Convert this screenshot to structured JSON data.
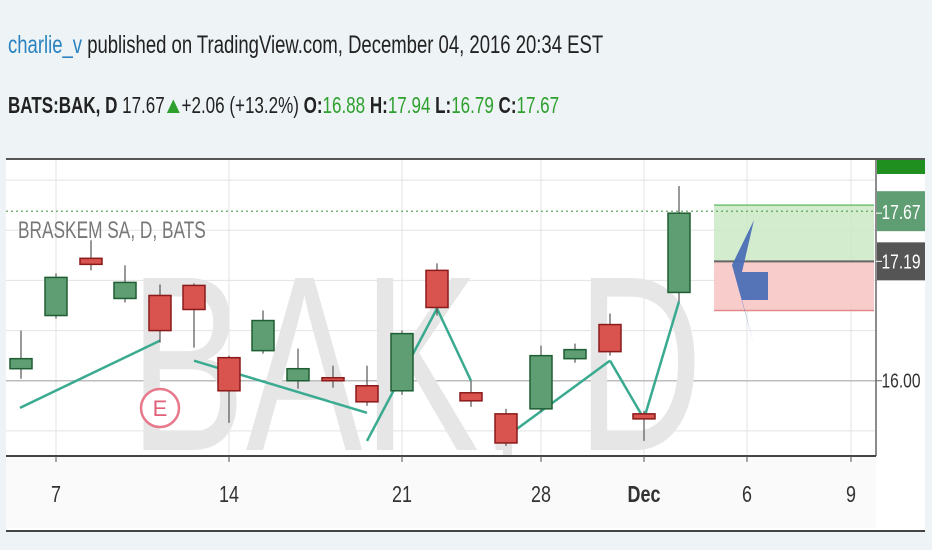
{
  "header": {
    "author": "charlie_v",
    "published": "published on TradingView.com, December 04, 2016 20:34 EST"
  },
  "quote": {
    "symbol": "BATS:BAK, D",
    "last": "17.67",
    "change": "+2.06 (+13.2%)",
    "open_label": "O:",
    "open": "16.88",
    "high_label": "H:",
    "high": "17.94",
    "low_label": "L:",
    "low": "16.79",
    "close_label": "C:",
    "close": "17.67"
  },
  "chart_data": {
    "type": "candlestick",
    "title": "BRASKEM SA, D, BATS",
    "watermark": "BAK, D",
    "x_tick_labels": [
      "7",
      "14",
      "21",
      "28",
      "Dec",
      "6",
      "9"
    ],
    "y_tick_labels": [
      "16.00"
    ],
    "price_labels": [
      "17.67",
      "17.19"
    ],
    "ylim": [
      15.25,
      18.2
    ],
    "colors": {
      "up": "#5f9e73",
      "down": "#d9534f",
      "trend": "#3aaa90"
    },
    "candles": [
      {
        "date": "2016-11-04",
        "o": 16.12,
        "c": 16.22,
        "h": 16.5,
        "l": 16.02
      },
      {
        "date": "2016-11-07",
        "o": 16.65,
        "c": 17.03,
        "h": 17.07,
        "l": 16.62
      },
      {
        "date": "2016-11-08",
        "o": 17.22,
        "c": 17.16,
        "h": 17.4,
        "l": 17.1
      },
      {
        "date": "2016-11-09",
        "o": 16.82,
        "c": 16.98,
        "h": 17.15,
        "l": 16.78
      },
      {
        "date": "2016-11-10",
        "o": 16.85,
        "c": 16.5,
        "h": 16.96,
        "l": 16.38
      },
      {
        "date": "2016-11-11",
        "o": 16.95,
        "c": 16.71,
        "h": 16.97,
        "l": 16.33
      },
      {
        "date": "2016-11-14",
        "o": 16.23,
        "c": 15.9,
        "h": 16.25,
        "l": 15.58
      },
      {
        "date": "2016-11-15",
        "o": 16.3,
        "c": 16.6,
        "h": 16.7,
        "l": 16.27
      },
      {
        "date": "2016-11-16",
        "o": 16.0,
        "c": 16.12,
        "h": 16.32,
        "l": 15.92
      },
      {
        "date": "2016-11-17",
        "o": 16.03,
        "c": 16.0,
        "h": 16.15,
        "l": 15.93
      },
      {
        "date": "2016-11-18",
        "o": 15.95,
        "c": 15.79,
        "h": 16.15,
        "l": 15.75
      },
      {
        "date": "2016-11-21",
        "o": 15.9,
        "c": 16.47,
        "h": 16.5,
        "l": 15.86
      },
      {
        "date": "2016-11-22",
        "o": 17.1,
        "c": 16.73,
        "h": 17.17,
        "l": 16.65
      },
      {
        "date": "2016-11-23",
        "o": 15.88,
        "c": 15.8,
        "h": 16.0,
        "l": 15.74
      },
      {
        "date": "2016-11-25",
        "o": 15.67,
        "c": 15.38,
        "h": 15.72,
        "l": 15.35
      },
      {
        "date": "2016-11-28",
        "o": 15.72,
        "c": 16.25,
        "h": 16.35,
        "l": 15.69
      },
      {
        "date": "2016-11-29",
        "o": 16.22,
        "c": 16.31,
        "h": 16.37,
        "l": 16.18
      },
      {
        "date": "2016-11-30",
        "o": 16.56,
        "c": 16.29,
        "h": 16.67,
        "l": 16.25
      },
      {
        "date": "2016-12-01",
        "o": 15.67,
        "c": 15.62,
        "h": 15.7,
        "l": 15.4
      },
      {
        "date": "2016-12-02",
        "o": 16.88,
        "c": 17.67,
        "h": 17.94,
        "l": 16.79
      }
    ],
    "trend_lines": [
      {
        "from": {
          "x": "2016-11-03",
          "y": 15.73
        },
        "to": {
          "x": "2016-11-10",
          "y": 16.4
        }
      },
      {
        "from": {
          "x": "2016-11-11",
          "y": 16.2
        },
        "to": {
          "x": "2016-11-18",
          "y": 15.68
        }
      },
      {
        "from": {
          "x": "2016-11-18",
          "y": 15.4
        },
        "to": {
          "x": "2016-11-22",
          "y": 16.72
        }
      },
      {
        "from": {
          "x": "2016-11-22",
          "y": 16.72
        },
        "to": {
          "x": "2016-11-23",
          "y": 16.0
        }
      },
      {
        "from": {
          "x": "2016-11-25",
          "y": 15.44
        },
        "to": {
          "x": "2016-11-30",
          "y": 16.2
        }
      },
      {
        "from": {
          "x": "2016-11-30",
          "y": 16.2
        },
        "to": {
          "x": "2016-12-01",
          "y": 15.62
        }
      },
      {
        "from": {
          "x": "2016-12-01",
          "y": 15.62
        },
        "to": {
          "x": "2016-12-02",
          "y": 16.79
        }
      }
    ],
    "earnings_marker": "E",
    "position_tool": {
      "entry": 17.19,
      "target": 17.67,
      "stop": 16.7
    },
    "last_price_line": 17.67,
    "grid": true
  }
}
